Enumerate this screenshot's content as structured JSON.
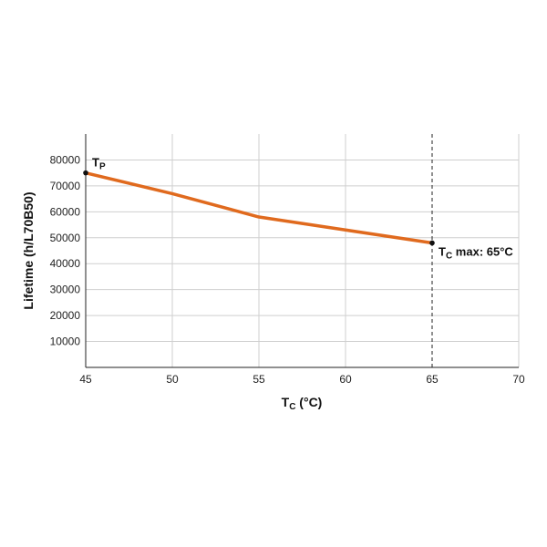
{
  "chart_data": {
    "type": "line",
    "title": "",
    "xlabel": {
      "main": "T",
      "sub": "C",
      "unit": " (°C)"
    },
    "ylabel": "Lifetime (h/L70B50)",
    "xlim": [
      45,
      70
    ],
    "ylim": [
      0,
      90000
    ],
    "x_ticks": [
      "45",
      "50",
      "55",
      "60",
      "65",
      "70"
    ],
    "y_ticks": [
      "10000",
      "20000",
      "30000",
      "40000",
      "50000",
      "60000",
      "70000",
      "80000"
    ],
    "grid": true,
    "series": [
      {
        "color": "#e06a1e",
        "x": [
          45,
          50,
          55,
          60,
          65
        ],
        "y": [
          75000,
          67000,
          58000,
          53000,
          48000
        ]
      }
    ],
    "annotations": [
      {
        "main": "T",
        "sub": "P",
        "rest": "",
        "x": 45,
        "y": 75000
      },
      {
        "main": "T",
        "sub": "C",
        "rest": " max: 65°C",
        "x": 65,
        "y": 48000
      }
    ],
    "reference_line": {
      "x": 65,
      "style": "dashed"
    }
  }
}
